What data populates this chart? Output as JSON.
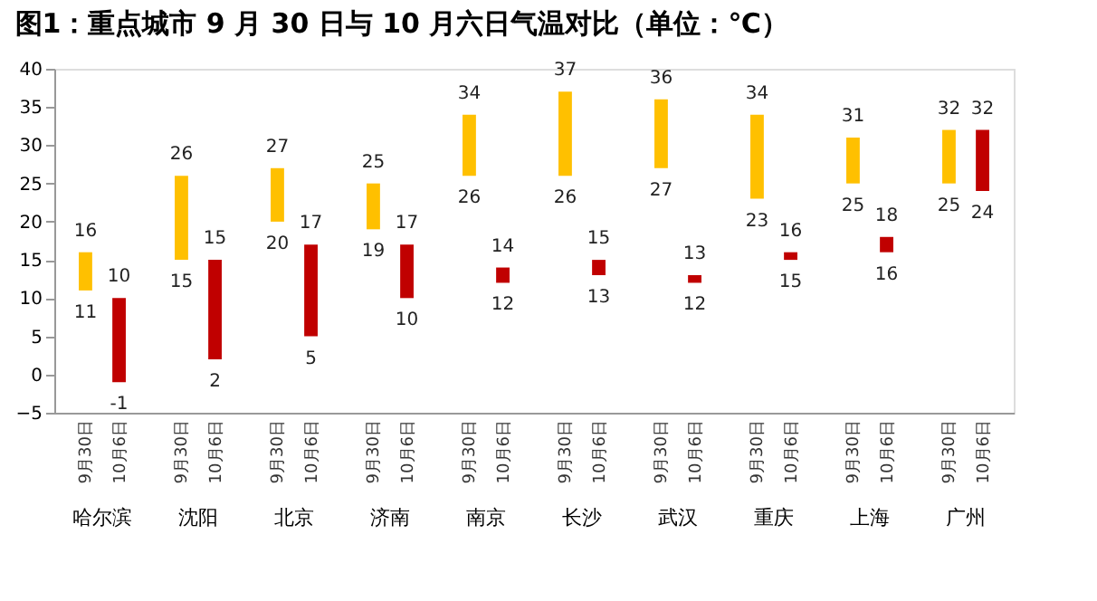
{
  "chart_data": {
    "type": "bar",
    "title": "图1：重点城市 9 月 30 日与 10 月六日气温对比（单位：℃）",
    "categories": [
      "哈尔滨",
      "沈阳",
      "北京",
      "济南",
      "南京",
      "长沙",
      "武汉",
      "重庆",
      "上海",
      "广州"
    ],
    "series": [
      {
        "name": "9月30日",
        "color": "#ffc000",
        "base": [
          11,
          15,
          20,
          19,
          26,
          26,
          27,
          23,
          25,
          25
        ],
        "values": [
          5,
          11,
          7,
          6,
          8,
          11,
          9,
          11,
          6,
          7
        ]
      },
      {
        "name": "10月6日",
        "color": "#c00000",
        "base": [
          -1,
          2,
          5,
          10,
          12,
          13,
          12,
          15,
          16,
          24
        ],
        "values": [
          11,
          13,
          12,
          7,
          2,
          2,
          1,
          1,
          2,
          8
        ]
      }
    ],
    "ylim": [
      -5,
      40
    ],
    "yticks": [
      -5,
      0,
      5,
      10,
      15,
      20,
      25,
      30,
      35,
      40
    ],
    "grid": false,
    "legend": false,
    "annotations": [
      "16",
      "11",
      "10",
      "-1",
      "26",
      "15",
      "15",
      "2",
      "27",
      "20",
      "17",
      "5",
      "25",
      "19",
      "17",
      "10",
      "34",
      "26",
      "14",
      "12",
      "37",
      "26",
      "15",
      "13",
      "36",
      "27",
      "13",
      "12",
      "34",
      "23",
      "16",
      "15",
      "31",
      "25",
      "18",
      "16",
      "32",
      "25",
      "32",
      "24"
    ]
  }
}
